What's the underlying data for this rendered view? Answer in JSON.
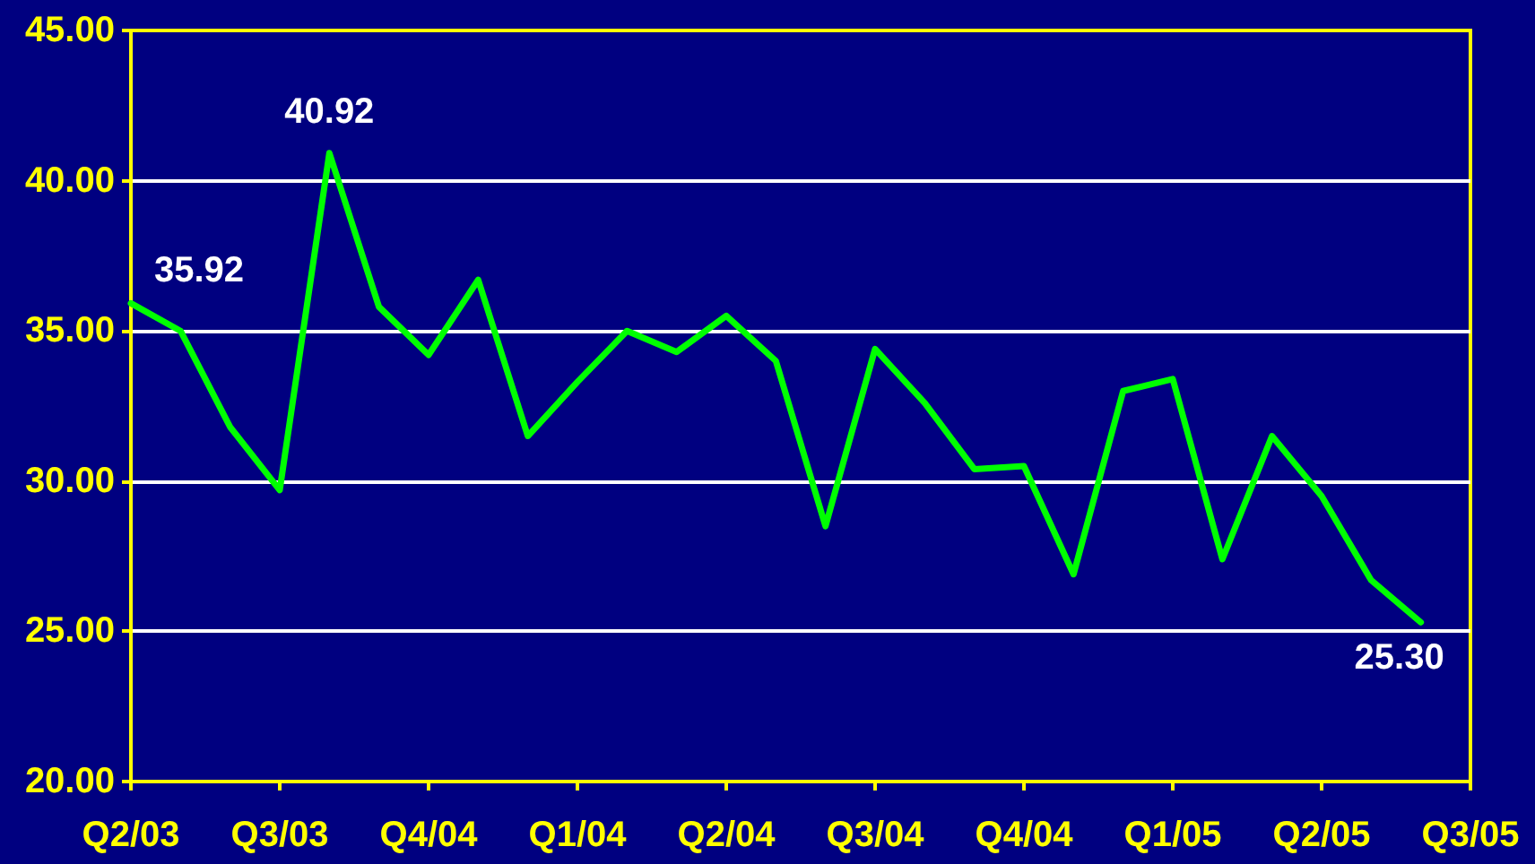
{
  "chart_data": {
    "type": "line",
    "color": "#00ff00",
    "marker": "none",
    "grid": "y",
    "categories": [
      "Q2/03",
      null,
      null,
      "Q3/03",
      null,
      null,
      "Q4/04",
      null,
      null,
      "Q1/04",
      null,
      null,
      "Q2/04",
      null,
      null,
      "Q3/04",
      null,
      null,
      "Q4/04",
      null,
      null,
      "Q1/05",
      null,
      null,
      "Q2/05",
      null,
      null,
      "Q3/05"
    ],
    "values": [
      35.92,
      35.0,
      31.8,
      29.7,
      40.92,
      35.8,
      34.2,
      36.7,
      31.5,
      33.3,
      35.0,
      34.3,
      35.5,
      34.0,
      28.5,
      34.4,
      32.6,
      30.4,
      30.5,
      26.9,
      33.0,
      33.4,
      27.4,
      31.5,
      29.5,
      26.7,
      25.3,
      null
    ],
    "value_labels": [
      "35.92",
      null,
      null,
      null,
      "40.92",
      null,
      null,
      null,
      null,
      null,
      null,
      null,
      null,
      null,
      null,
      null,
      null,
      null,
      null,
      null,
      null,
      null,
      null,
      null,
      null,
      null,
      "25.30",
      null
    ],
    "ylim": [
      20,
      45
    ],
    "yticks": [
      {
        "value": 20,
        "label": "20.00"
      },
      {
        "value": 25,
        "label": "25.00"
      },
      {
        "value": 30,
        "label": "30.00"
      },
      {
        "value": 35,
        "label": "35.00"
      },
      {
        "value": 40,
        "label": "40.00"
      },
      {
        "value": 45,
        "label": "45.00"
      }
    ]
  }
}
